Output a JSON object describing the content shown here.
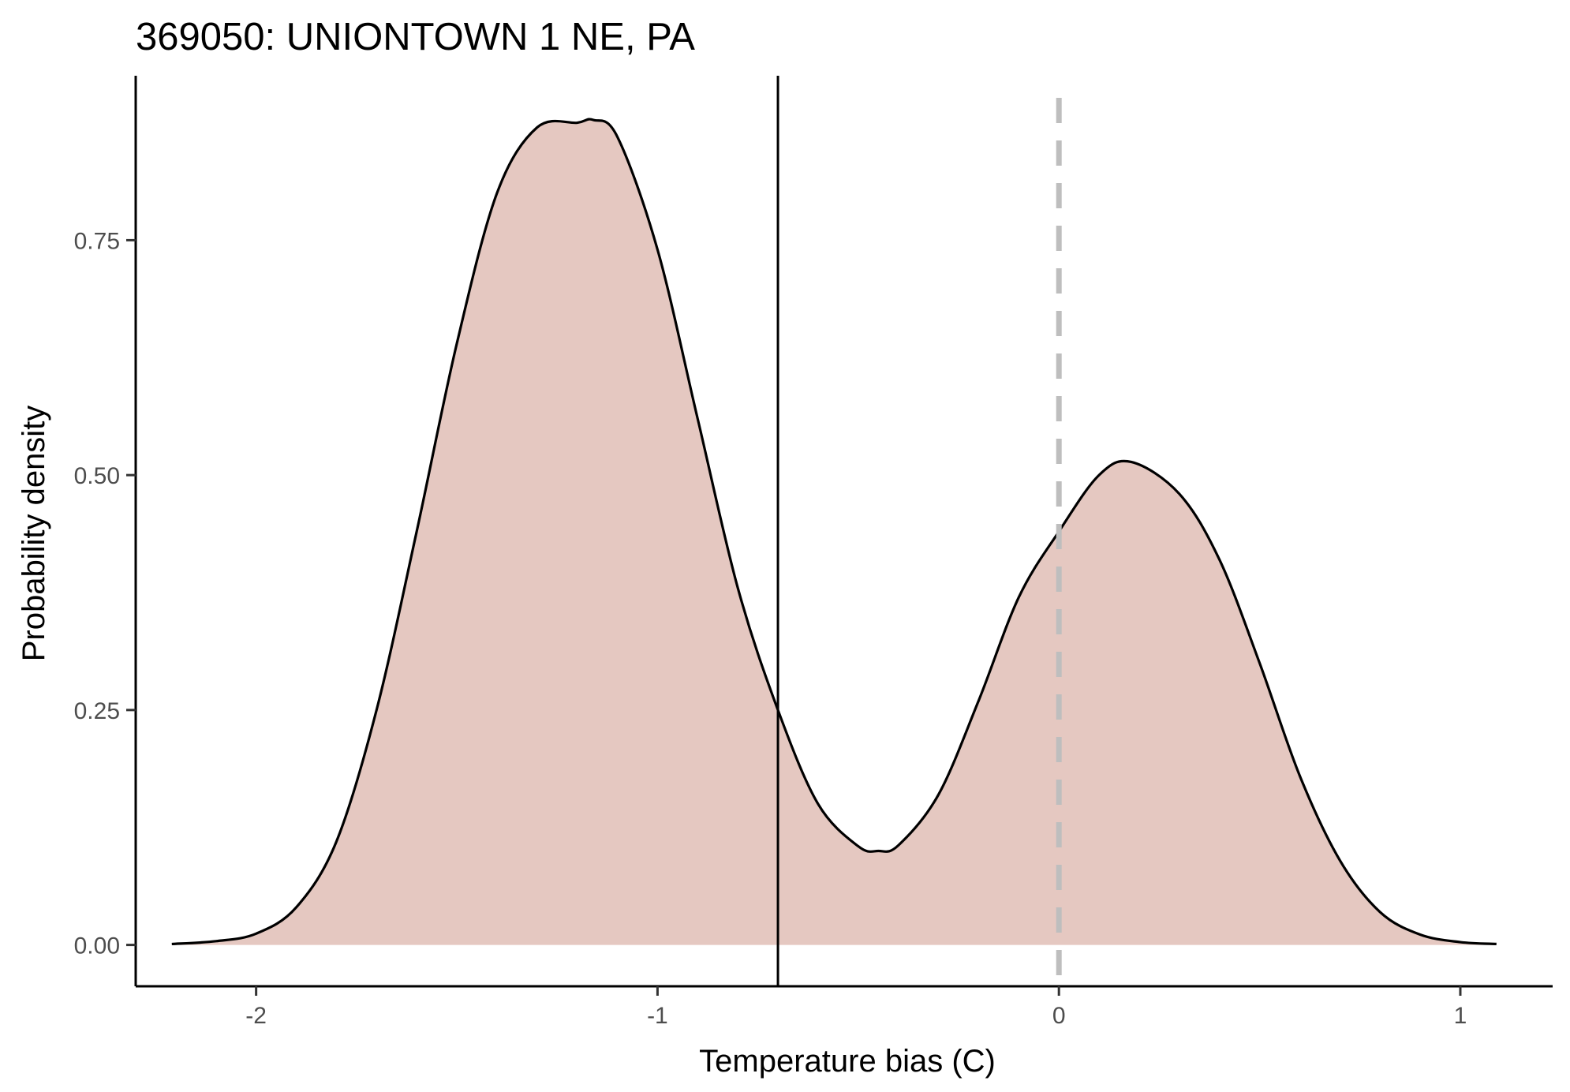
{
  "chart_data": {
    "type": "area",
    "title": "369050: UNIONTOWN 1 NE, PA",
    "xlabel": "Temperature bias (C)",
    "ylabel": "Probability density",
    "xlim": [
      -2.3,
      1.23
    ],
    "ylim": [
      -0.044,
      0.925
    ],
    "x_ticks": [
      -2,
      -1,
      0,
      1
    ],
    "x_tick_labels": [
      "-2",
      "-1",
      "0",
      "1"
    ],
    "y_ticks": [
      0.0,
      0.25,
      0.5,
      0.75
    ],
    "y_tick_labels": [
      "0.00",
      "0.25",
      "0.50",
      "0.75"
    ],
    "grid": false,
    "legend": "none",
    "series": [
      {
        "x": [
          -2.21,
          -2.1,
          -2.0,
          -1.9,
          -1.8,
          -1.7,
          -1.6,
          -1.5,
          -1.4,
          -1.3,
          -1.2,
          -1.16,
          -1.1,
          -1.0,
          -0.9,
          -0.8,
          -0.7,
          -0.6,
          -0.5,
          -0.45,
          -0.4,
          -0.3,
          -0.2,
          -0.1,
          0.0,
          0.1,
          0.18,
          0.3,
          0.4,
          0.5,
          0.6,
          0.7,
          0.8,
          0.9,
          1.0,
          1.09
        ],
        "y": [
          0.001,
          0.004,
          0.012,
          0.04,
          0.11,
          0.25,
          0.44,
          0.64,
          0.8,
          0.87,
          0.875,
          0.878,
          0.86,
          0.74,
          0.56,
          0.38,
          0.25,
          0.15,
          0.105,
          0.1,
          0.106,
          0.16,
          0.26,
          0.37,
          0.44,
          0.5,
          0.514,
          0.48,
          0.41,
          0.3,
          0.18,
          0.09,
          0.035,
          0.011,
          0.003,
          0.001
        ],
        "fill": "#e5c8c1",
        "line_color": "#000000"
      }
    ],
    "annotations": [
      {
        "type": "vline",
        "x": -0.7,
        "style": "solid",
        "color": "#000000"
      },
      {
        "type": "vline",
        "x": 0.0,
        "style": "dashed",
        "color": "#bebebe"
      }
    ]
  }
}
